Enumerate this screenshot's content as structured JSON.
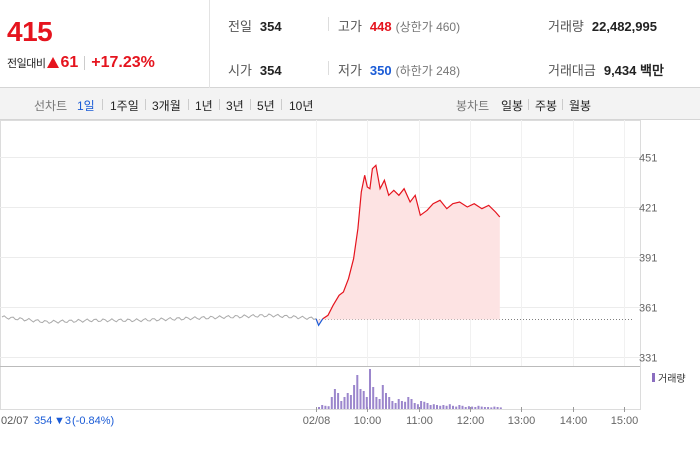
{
  "quote": {
    "price": "415",
    "change_label": "전일대비",
    "change_value": "61",
    "change_rate": "+17.23%",
    "up_color": "#e5141e",
    "down_color": "#1a5bd6"
  },
  "stats": {
    "prev_close": {
      "label": "전일",
      "value": "354"
    },
    "high": {
      "label": "고가",
      "value": "448",
      "sub": "(상한가 460)"
    },
    "volume": {
      "label": "거래량",
      "value": "22,482,995"
    },
    "open": {
      "label": "시가",
      "value": "354"
    },
    "low": {
      "label": "저가",
      "value": "350",
      "sub": "(하한가 248)"
    },
    "turnover": {
      "label": "거래대금",
      "value": "9,434 백만"
    }
  },
  "toolbar": {
    "line_chart_title": "선차트",
    "periods": [
      "1일",
      "1주일",
      "3개월",
      "1년",
      "3년",
      "5년",
      "10년"
    ],
    "active_period": "1일",
    "candle_chart_title": "봉차트",
    "candles": [
      "일봉",
      "주봉",
      "월봉"
    ]
  },
  "chart_data": {
    "type": "line",
    "y_ticks": [
      "451",
      "421",
      "391",
      "361",
      "331"
    ],
    "ylim": [
      331,
      451
    ],
    "x_ticks": [
      "02/07",
      "02/08",
      "10:00",
      "11:00",
      "12:00",
      "13:00",
      "14:00",
      "15:00"
    ],
    "reference_price": 354,
    "volume_legend": "거래량",
    "prev_day_note": {
      "date": "02/07",
      "close": "354",
      "change": "▼3",
      "rate": "(-0.84%)"
    },
    "prev_day_series": [
      {
        "x": "02/07 09:00",
        "y": 355
      },
      {
        "x": "02/07 10:00",
        "y": 352
      },
      {
        "x": "02/07 11:00",
        "y": 353
      },
      {
        "x": "02/07 12:00",
        "y": 353
      },
      {
        "x": "02/07 13:00",
        "y": 354
      },
      {
        "x": "02/07 14:00",
        "y": 355
      },
      {
        "x": "02/07 15:00",
        "y": 356
      },
      {
        "x": "02/07 15:30",
        "y": 354
      }
    ],
    "today_series": [
      {
        "x": "09:00",
        "y": 354
      },
      {
        "x": "09:03",
        "y": 350
      },
      {
        "x": "09:08",
        "y": 354
      },
      {
        "x": "09:14",
        "y": 356
      },
      {
        "x": "09:20",
        "y": 362
      },
      {
        "x": "09:27",
        "y": 368
      },
      {
        "x": "09:32",
        "y": 370
      },
      {
        "x": "09:38",
        "y": 378
      },
      {
        "x": "09:44",
        "y": 390
      },
      {
        "x": "09:49",
        "y": 408
      },
      {
        "x": "09:53",
        "y": 430
      },
      {
        "x": "09:57",
        "y": 440
      },
      {
        "x": "10:00",
        "y": 433
      },
      {
        "x": "10:03",
        "y": 432
      },
      {
        "x": "10:06",
        "y": 444
      },
      {
        "x": "10:10",
        "y": 446
      },
      {
        "x": "10:15",
        "y": 432
      },
      {
        "x": "10:20",
        "y": 437
      },
      {
        "x": "10:25",
        "y": 428
      },
      {
        "x": "10:31",
        "y": 431
      },
      {
        "x": "10:37",
        "y": 428
      },
      {
        "x": "10:43",
        "y": 432
      },
      {
        "x": "10:50",
        "y": 424
      },
      {
        "x": "10:56",
        "y": 428
      },
      {
        "x": "11:02",
        "y": 416
      },
      {
        "x": "11:10",
        "y": 419
      },
      {
        "x": "11:17",
        "y": 423
      },
      {
        "x": "11:25",
        "y": 425
      },
      {
        "x": "11:33",
        "y": 420
      },
      {
        "x": "11:40",
        "y": 423
      },
      {
        "x": "11:48",
        "y": 424
      },
      {
        "x": "11:57",
        "y": 421
      },
      {
        "x": "12:05",
        "y": 423
      },
      {
        "x": "12:14",
        "y": 420
      },
      {
        "x": "12:22",
        "y": 422
      },
      {
        "x": "12:30",
        "y": 418
      },
      {
        "x": "12:35",
        "y": 415
      }
    ],
    "volume_relative": [
      0.05,
      0.1,
      0.08,
      0.07,
      0.3,
      0.5,
      0.4,
      0.2,
      0.3,
      0.4,
      0.35,
      0.6,
      0.85,
      0.5,
      0.45,
      0.3,
      1.0,
      0.55,
      0.3,
      0.25,
      0.6,
      0.4,
      0.3,
      0.2,
      0.15,
      0.25,
      0.2,
      0.18,
      0.3,
      0.25,
      0.15,
      0.12,
      0.2,
      0.18,
      0.15,
      0.1,
      0.12,
      0.1,
      0.08,
      0.1,
      0.08,
      0.12,
      0.08,
      0.06,
      0.1,
      0.08,
      0.05,
      0.07,
      0.06,
      0.05,
      0.08,
      0.06,
      0.05,
      0.05,
      0.04,
      0.06,
      0.05,
      0.04
    ]
  }
}
